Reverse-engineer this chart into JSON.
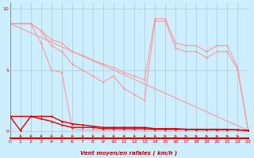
{
  "background_color": "#cceeff",
  "xlabel": "Vent moyen/en rafales ( km/h )",
  "xlim": [
    0,
    23
  ],
  "ylim": [
    -0.6,
    10.5
  ],
  "yticks": [
    0,
    5,
    10
  ],
  "xticks": [
    0,
    1,
    2,
    3,
    4,
    5,
    6,
    7,
    8,
    9,
    10,
    11,
    12,
    13,
    14,
    15,
    16,
    17,
    18,
    19,
    20,
    21,
    22,
    23
  ],
  "grid_color": "#aacccc",
  "lines_pink": [
    {
      "x": [
        0,
        2,
        3,
        4,
        5,
        6,
        7,
        8,
        9,
        10,
        11,
        12,
        13,
        14,
        15,
        16,
        17,
        18,
        19,
        20,
        21,
        22,
        23
      ],
      "y": [
        8.8,
        8.8,
        7.2,
        5.0,
        4.8,
        0.2,
        0.1,
        0.1,
        0.1,
        0.1,
        0.1,
        0.1,
        0.1,
        0.1,
        0.1,
        0.1,
        0.1,
        0.1,
        0.1,
        0.1,
        0.1,
        0.1,
        0.05
      ]
    },
    {
      "x": [
        0,
        2,
        3,
        4,
        5,
        6,
        7,
        8,
        9,
        10,
        11,
        12,
        13,
        14,
        15,
        16,
        17,
        18,
        19,
        20,
        21,
        22,
        23
      ],
      "y": [
        8.8,
        8.8,
        8.2,
        7.0,
        6.5,
        5.5,
        5.0,
        4.5,
        4.0,
        4.5,
        3.5,
        3.0,
        2.5,
        9.0,
        9.0,
        6.8,
        6.5,
        6.5,
        6.0,
        6.5,
        6.5,
        5.0,
        0.1
      ]
    },
    {
      "x": [
        0,
        23
      ],
      "y": [
        8.8,
        0.05
      ]
    },
    {
      "x": [
        0,
        2,
        3,
        4,
        5,
        6,
        7,
        8,
        9,
        10,
        11,
        12,
        13,
        14,
        15,
        16,
        17,
        18,
        19,
        20,
        21,
        22,
        23
      ],
      "y": [
        8.8,
        8.8,
        8.2,
        7.5,
        7.2,
        6.5,
        6.2,
        5.8,
        5.5,
        5.2,
        4.8,
        4.5,
        4.2,
        9.2,
        9.2,
        7.2,
        7.0,
        7.0,
        6.5,
        7.0,
        7.0,
        5.2,
        0.1
      ]
    }
  ],
  "line_red1_x": [
    0,
    1,
    2,
    3,
    4,
    5,
    6,
    7,
    8,
    9,
    10,
    11,
    12,
    13,
    14,
    15,
    16,
    17,
    18,
    19,
    20,
    21,
    22,
    23
  ],
  "line_red1_y": [
    1.2,
    0.05,
    1.2,
    1.2,
    1.2,
    0.8,
    0.6,
    0.5,
    0.4,
    0.3,
    0.3,
    0.3,
    0.3,
    0.3,
    0.2,
    0.2,
    0.2,
    0.15,
    0.15,
    0.15,
    0.15,
    0.15,
    0.1,
    0.05
  ],
  "line_red2_x": [
    0,
    2,
    3,
    4,
    5,
    6,
    7,
    8,
    9,
    10,
    11,
    12,
    13,
    14,
    15,
    16,
    17,
    18,
    19,
    20,
    21,
    22,
    23
  ],
  "line_red2_y": [
    1.2,
    1.2,
    1.0,
    0.8,
    0.5,
    0.3,
    0.3,
    0.3,
    0.2,
    0.2,
    0.2,
    0.2,
    0.2,
    0.15,
    0.15,
    0.15,
    0.15,
    0.1,
    0.1,
    0.1,
    0.1,
    0.1,
    0.05
  ],
  "wind_symbols_x": [
    0,
    1,
    2,
    3,
    4,
    5,
    6,
    7,
    8,
    9,
    10,
    11,
    12,
    13,
    14,
    15,
    16,
    17,
    18,
    19,
    20,
    21,
    22,
    23
  ],
  "wind_symbols_type": [
    2,
    2,
    2,
    2,
    2,
    2,
    2,
    2,
    2,
    2,
    2,
    2,
    2,
    2,
    2,
    3,
    3,
    3,
    3,
    3,
    3,
    3,
    3,
    3
  ]
}
